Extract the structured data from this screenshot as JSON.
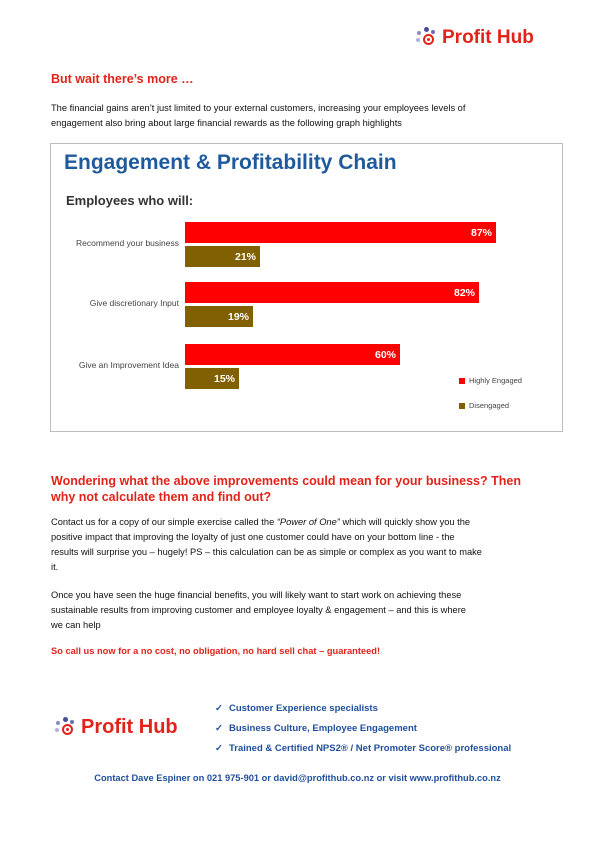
{
  "brand": {
    "name": "Profit Hub"
  },
  "section1": {
    "heading": "But wait there’s more …",
    "body_line1": "The financial gains aren’t just limited to your external customers, increasing your employees levels of",
    "body_line2": "engagement also bring about large financial rewards as the following graph highlights"
  },
  "chart_data": {
    "type": "bar",
    "orientation": "horizontal",
    "title": "Engagement & Profitability Chain",
    "subtitle": "Employees who will:",
    "categories": [
      "Recommend your business",
      "Give discretionary Input",
      "Give an Improvement Idea"
    ],
    "series": [
      {
        "name": "Highly Engaged",
        "values": [
          87,
          82,
          60
        ],
        "labels": [
          "87%",
          "82%",
          "60%"
        ],
        "color": "#ff0000"
      },
      {
        "name": "Disengaged",
        "values": [
          21,
          19,
          15
        ],
        "labels": [
          "21%",
          "19%",
          "15%"
        ],
        "color": "#806000"
      }
    ],
    "xlim": [
      0,
      100
    ],
    "grid": false,
    "legend": "bottom-right"
  },
  "section2": {
    "heading_line1": "Wondering what the above improvements could mean for your business? Then",
    "heading_line2": "why not calculate them and find out?",
    "p1_line1_pre": "Contact us for a copy of our simple exercise called the ",
    "p1_line1_em": "“Power of One”",
    "p1_line1_post": " which will quickly show you the",
    "p1_line2": "positive impact that improving the loyalty of just one customer could have on your bottom line - the",
    "p1_line3": "results will surprise you – hugely! PS – this calculation can be as simple or complex as you want to make",
    "p1_line4": "it.",
    "p2_line1": "Once you have seen the huge financial benefits, you will likely want to start work on achieving these",
    "p2_line2": "sustainable results from improving customer and employee loyalty & engagement – and this is where",
    "p2_line3": "we can help",
    "cta": "So call us now for a no cost, no obligation, no hard sell chat – guaranteed!"
  },
  "footer": {
    "check_mark": "✓",
    "items": [
      "Customer Experience specialists",
      "Business Culture, Employee Engagement",
      "Trained & Certified NPS2® / Net Promoter Score® professional"
    ],
    "contact": "Contact Dave Espiner on 021 975-901 or david@profithub.co.nz or visit www.profithub.co.nz"
  },
  "colors": {
    "accent_red": "#e2231a",
    "chart_blue": "#1f5b9c",
    "navy": "#1f4e9c",
    "engaged": "#ff0000",
    "disengaged": "#806000"
  }
}
